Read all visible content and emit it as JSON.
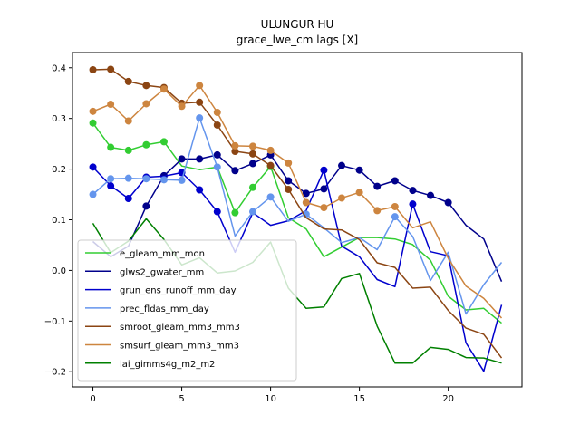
{
  "chart_data": {
    "type": "line",
    "title": "ULUNGUR HU",
    "subtitle": "grace_lwe_cm lags [X]",
    "xlabel": "",
    "ylabel": "",
    "xlim": [
      -1.15,
      24.15
    ],
    "ylim": [
      -0.23,
      0.43
    ],
    "xticks": [
      0,
      5,
      10,
      15,
      20
    ],
    "yticks": [
      -0.2,
      -0.1,
      0.0,
      0.1,
      0.2,
      0.3,
      0.4
    ],
    "ytick_labels": [
      "−0.2",
      "−0.1",
      "0.0",
      "0.1",
      "0.2",
      "0.3",
      "0.4"
    ],
    "grid": false,
    "legend_position": "lower-left",
    "x": [
      0,
      1,
      2,
      3,
      4,
      5,
      6,
      7,
      8,
      9,
      10,
      11,
      12,
      13,
      14,
      15,
      16,
      17,
      18,
      19,
      20,
      21,
      22,
      23
    ],
    "series": [
      {
        "name": "e_gleam_mm_mon",
        "color": "#32cd32",
        "values": [
          0.291,
          0.243,
          0.237,
          0.248,
          0.254,
          0.206,
          0.199,
          0.204,
          0.114,
          0.164,
          0.205,
          0.104,
          0.082,
          0.027,
          0.046,
          0.065,
          0.065,
          0.062,
          0.051,
          0.02,
          -0.051,
          -0.078,
          -0.075,
          -0.104
        ],
        "markers": [
          0,
          1,
          2,
          3,
          4,
          8,
          9,
          10
        ]
      },
      {
        "name": "glws2_gwater_mm",
        "color": "#00008b",
        "values": [
          0.057,
          0.027,
          0.048,
          0.127,
          0.187,
          0.22,
          0.22,
          0.228,
          0.197,
          0.211,
          0.228,
          0.177,
          0.152,
          0.161,
          0.207,
          0.198,
          0.166,
          0.177,
          0.158,
          0.148,
          0.134,
          0.089,
          0.062,
          -0.022
        ],
        "markers": [
          3,
          4,
          5,
          6,
          7,
          8,
          9,
          10,
          11,
          12,
          13,
          14,
          15,
          16,
          17,
          18,
          19,
          20
        ]
      },
      {
        "name": "grun_ens_runoff_mm_day",
        "color": "#0000cd",
        "values": [
          0.204,
          0.167,
          0.142,
          0.184,
          0.186,
          0.193,
          0.159,
          0.116,
          0.036,
          0.114,
          0.089,
          0.098,
          0.118,
          0.198,
          0.048,
          0.027,
          -0.018,
          -0.032,
          0.131,
          0.037,
          0.029,
          -0.143,
          -0.199,
          -0.068
        ],
        "markers": [
          0,
          1,
          2,
          3,
          5,
          6,
          7,
          13,
          18
        ]
      },
      {
        "name": "prec_fldas_mm_day",
        "color": "#6495ed",
        "values": [
          0.15,
          0.181,
          0.182,
          0.181,
          0.179,
          0.178,
          0.301,
          0.204,
          0.068,
          0.116,
          0.145,
          0.097,
          0.111,
          0.084,
          0.055,
          0.065,
          0.041,
          0.106,
          0.067,
          -0.02,
          0.036,
          -0.086,
          -0.028,
          0.016
        ],
        "markers": [
          0,
          1,
          2,
          3,
          4,
          5,
          6,
          7,
          9,
          10,
          12,
          17
        ]
      },
      {
        "name": "smroot_gleam_mm3_mm3",
        "color": "#8b4513",
        "values": [
          0.396,
          0.397,
          0.373,
          0.365,
          0.361,
          0.33,
          0.332,
          0.287,
          0.235,
          0.23,
          0.207,
          0.16,
          0.104,
          0.082,
          0.08,
          0.061,
          0.015,
          0.006,
          -0.035,
          -0.033,
          -0.079,
          -0.114,
          -0.126,
          -0.173
        ],
        "markers": [
          0,
          1,
          2,
          3,
          4,
          5,
          6,
          7,
          8,
          9,
          10,
          11
        ]
      },
      {
        "name": "smsurf_gleam_mm3_mm3",
        "color": "#cd853f",
        "values": [
          0.314,
          0.328,
          0.295,
          0.329,
          0.358,
          0.324,
          0.365,
          0.312,
          0.246,
          0.245,
          0.237,
          0.212,
          0.134,
          0.124,
          0.143,
          0.154,
          0.118,
          0.126,
          0.084,
          0.096,
          0.024,
          -0.031,
          -0.055,
          -0.094
        ],
        "markers": [
          0,
          1,
          2,
          3,
          4,
          5,
          6,
          7,
          8,
          9,
          10,
          11,
          12,
          13,
          14,
          15,
          16,
          17
        ]
      },
      {
        "name": "lai_gimms4g_m2_m2",
        "color": "#008000",
        "values": [
          0.093,
          0.035,
          0.058,
          0.102,
          0.061,
          0.011,
          0.025,
          -0.005,
          -0.001,
          0.016,
          0.056,
          -0.035,
          -0.075,
          -0.072,
          -0.016,
          -0.006,
          -0.11,
          -0.183,
          -0.183,
          -0.152,
          -0.156,
          -0.172,
          -0.173,
          -0.183
        ],
        "markers": []
      }
    ]
  }
}
